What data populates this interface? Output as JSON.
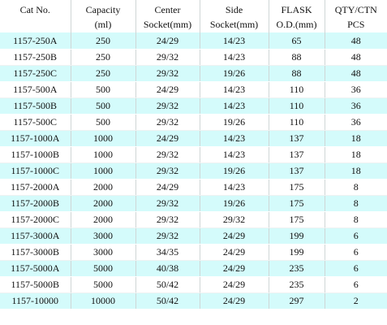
{
  "header": {
    "row1": [
      "Cat No.",
      "Capacity",
      "Center",
      "Side",
      "FLASK",
      "QTY/CTN"
    ],
    "row2": [
      "",
      "(ml)",
      "Socket(mm)",
      "Socket(mm)",
      "O.D.(mm)",
      "PCS"
    ]
  },
  "rows": [
    [
      "1157-250A",
      "250",
      "24/29",
      "14/23",
      "65",
      "48"
    ],
    [
      "1157-250B",
      "250",
      "29/32",
      "14/23",
      "88",
      "48"
    ],
    [
      "1157-250C",
      "250",
      "29/32",
      "19/26",
      "88",
      "48"
    ],
    [
      "1157-500A",
      "500",
      "24/29",
      "14/23",
      "110",
      "36"
    ],
    [
      "1157-500B",
      "500",
      "29/32",
      "14/23",
      "110",
      "36"
    ],
    [
      "1157-500C",
      "500",
      "29/32",
      "19/26",
      "110",
      "36"
    ],
    [
      "1157-1000A",
      "1000",
      "24/29",
      "14/23",
      "137",
      "18"
    ],
    [
      "1157-1000B",
      "1000",
      "29/32",
      "14/23",
      "137",
      "18"
    ],
    [
      "1157-1000C",
      "1000",
      "29/32",
      "19/26",
      "137",
      "18"
    ],
    [
      "1157-2000A",
      "2000",
      "24/29",
      "14/23",
      "175",
      "8"
    ],
    [
      "1157-2000B",
      "2000",
      "29/32",
      "19/26",
      "175",
      "8"
    ],
    [
      "1157-2000C",
      "2000",
      "29/32",
      "29/32",
      "175",
      "8"
    ],
    [
      "1157-3000A",
      "3000",
      "29/32",
      "24/29",
      "199",
      "6"
    ],
    [
      "1157-3000B",
      "3000",
      "34/35",
      "24/29",
      "199",
      "6"
    ],
    [
      "1157-5000A",
      "5000",
      "40/38",
      "24/29",
      "235",
      "6"
    ],
    [
      "1157-5000B",
      "5000",
      "50/42",
      "24/29",
      "235",
      "6"
    ],
    [
      "1157-10000",
      "10000",
      "50/42",
      "24/29",
      "297",
      "2"
    ]
  ],
  "colors": {
    "stripe": "#d4fbfb",
    "background": "#ffffff"
  }
}
